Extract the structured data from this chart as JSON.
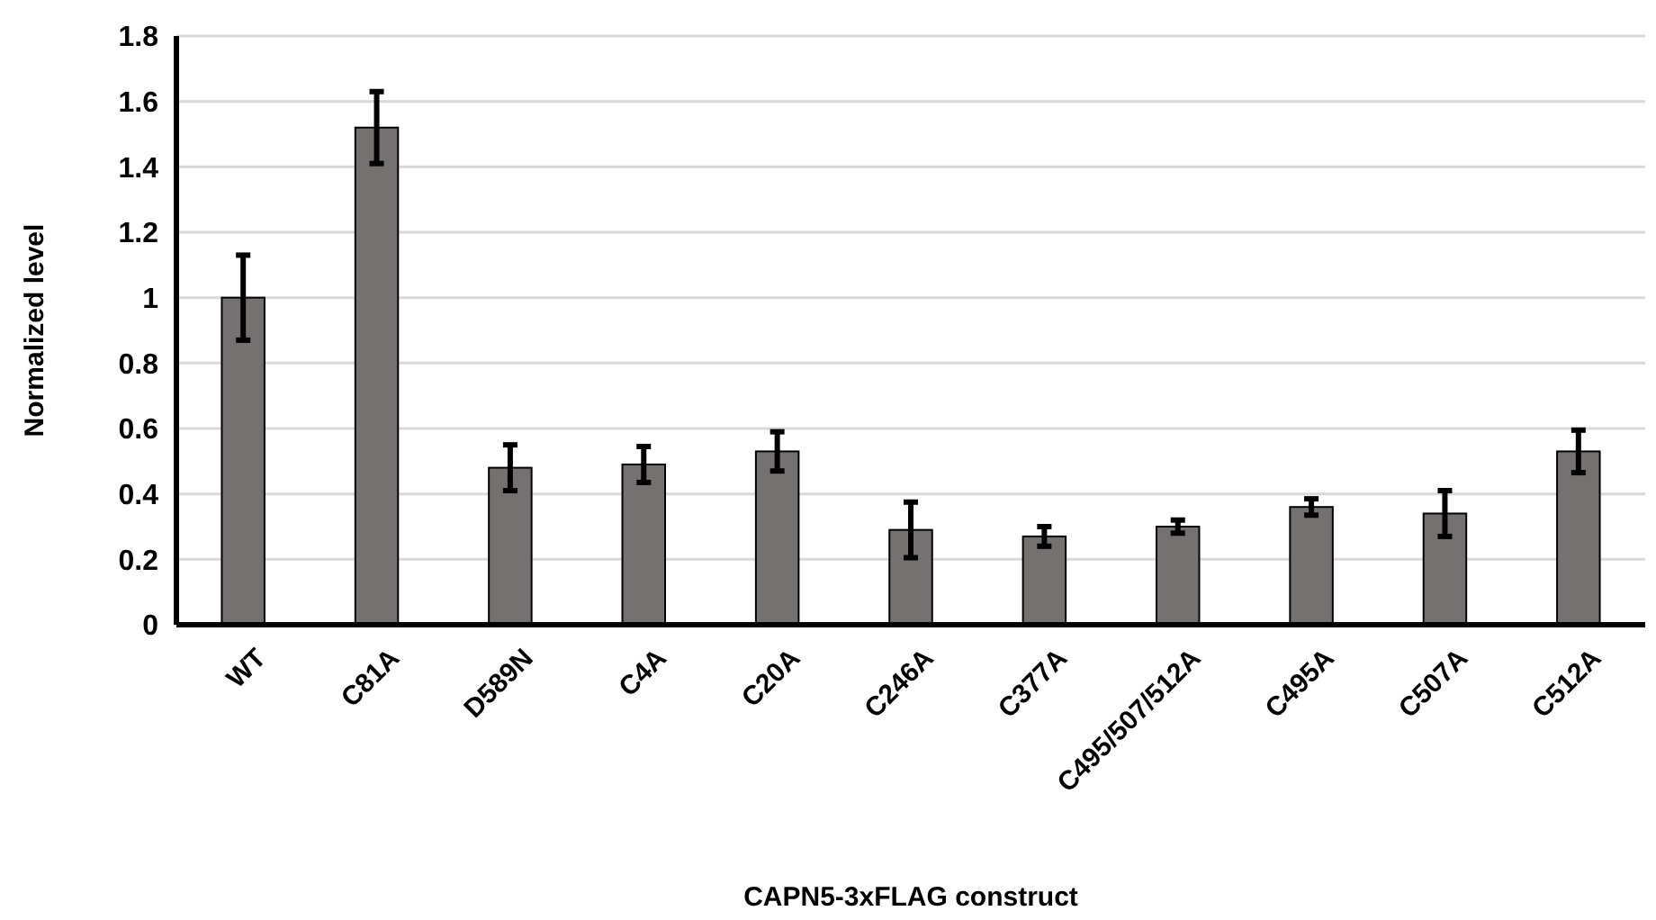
{
  "chart_data": {
    "type": "bar",
    "xlabel": "CAPN5-3xFLAG construct",
    "ylabel": "Normalized level",
    "categories": [
      "WT",
      "C81A",
      "D589N",
      "C4A",
      "C20A",
      "C246A",
      "C377A",
      "C495/507/512A",
      "C495A",
      "C507A",
      "C512A"
    ],
    "values": [
      1.0,
      1.52,
      0.48,
      0.49,
      0.53,
      0.29,
      0.27,
      0.3,
      0.36,
      0.34,
      0.53
    ],
    "errors": [
      0.13,
      0.11,
      0.07,
      0.055,
      0.06,
      0.085,
      0.03,
      0.02,
      0.025,
      0.07,
      0.065
    ],
    "color": "#767171",
    "ylim": [
      0,
      1.8
    ],
    "yticks": [
      0,
      0.2,
      0.4,
      0.6,
      0.8,
      1,
      1.2,
      1.4,
      1.6,
      1.8
    ],
    "grid": "y"
  }
}
